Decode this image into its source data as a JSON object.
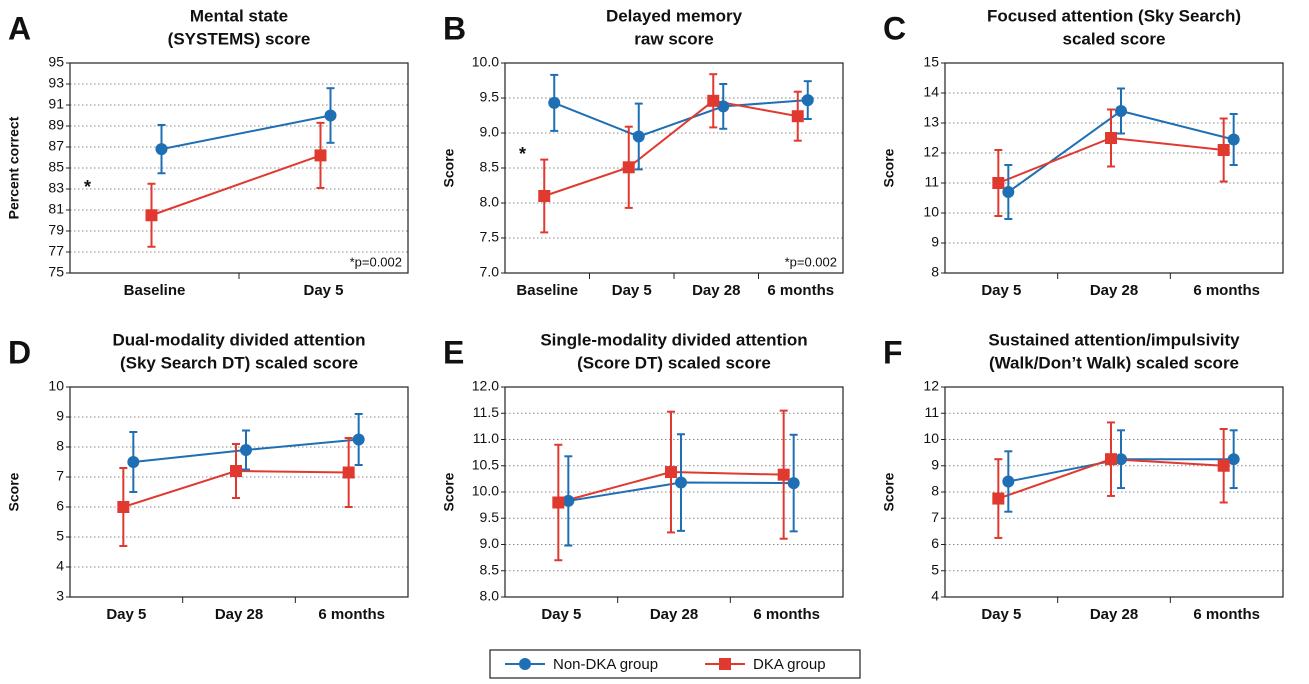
{
  "chart_data": [
    {
      "type": "line",
      "label": "A",
      "title": [
        "Mental state",
        "(SYSTEMS) score"
      ],
      "y_label": "Percent correct",
      "categories": [
        "Baseline",
        "Day 5"
      ],
      "ylim": [
        75,
        95
      ],
      "yticks": [
        75,
        77,
        79,
        81,
        83,
        85,
        87,
        89,
        91,
        93,
        95
      ],
      "grid": true,
      "annotations": [
        "*",
        "*p=0.002"
      ],
      "series": [
        {
          "name": "Non-DKA group",
          "color": "#1f6fb4",
          "marker": "circle",
          "values": [
            86.8,
            90.0
          ],
          "errors": [
            2.3,
            2.6
          ]
        },
        {
          "name": "DKA group",
          "color": "#e03a30",
          "marker": "square",
          "values": [
            80.5,
            86.2
          ],
          "errors": [
            3.0,
            3.1
          ]
        }
      ]
    },
    {
      "type": "line",
      "label": "B",
      "title": [
        "Delayed memory",
        "raw score"
      ],
      "y_label": "Score",
      "categories": [
        "Baseline",
        "Day 5",
        "Day 28",
        "6 months"
      ],
      "ylim": [
        7.0,
        10.0
      ],
      "yticks": [
        {
          "value": 7,
          "label": "7.0"
        },
        7.5,
        {
          "value": 8,
          "label": "8.0"
        },
        8.5,
        {
          "value": 9,
          "label": "9.0"
        },
        9.5,
        {
          "value": 10,
          "label": "10.0"
        }
      ],
      "grid": true,
      "annotations": [
        "*",
        "*p=0.002"
      ],
      "series": [
        {
          "name": "Non-DKA group",
          "color": "#1f6fb4",
          "marker": "circle",
          "values": [
            9.43,
            8.95,
            9.38,
            9.47
          ],
          "errors": [
            0.4,
            0.47,
            0.32,
            0.27
          ]
        },
        {
          "name": "DKA group",
          "color": "#e03a30",
          "marker": "square",
          "values": [
            8.1,
            8.51,
            9.46,
            9.24
          ],
          "errors": [
            0.52,
            0.58,
            0.38,
            0.35
          ]
        }
      ]
    },
    {
      "type": "line",
      "label": "C",
      "title": [
        "Focused attention (Sky Search)",
        "scaled score"
      ],
      "y_label": "Score",
      "categories": [
        "Day 5",
        "Day 28",
        "6 months"
      ],
      "ylim": [
        8,
        15
      ],
      "yticks": [
        8,
        9,
        10,
        11,
        12,
        13,
        14,
        15
      ],
      "grid": true,
      "series": [
        {
          "name": "Non-DKA group",
          "color": "#1f6fb4",
          "marker": "circle",
          "values": [
            10.7,
            13.4,
            12.45
          ],
          "errors": [
            0.9,
            0.75,
            0.85
          ]
        },
        {
          "name": "DKA group",
          "color": "#e03a30",
          "marker": "square",
          "values": [
            11.0,
            12.5,
            12.1
          ],
          "errors": [
            1.1,
            0.95,
            1.05
          ]
        }
      ]
    },
    {
      "type": "line",
      "label": "D",
      "title": [
        "Dual-modality divided attention",
        "(Sky Search DT) scaled score"
      ],
      "y_label": "Score",
      "categories": [
        "Day 5",
        "Day 28",
        "6 months"
      ],
      "ylim": [
        3,
        10
      ],
      "yticks": [
        3,
        4,
        5,
        6,
        7,
        8,
        9,
        10
      ],
      "grid": true,
      "series": [
        {
          "name": "Non-DKA group",
          "color": "#1f6fb4",
          "marker": "circle",
          "values": [
            7.5,
            7.9,
            8.25
          ],
          "errors": [
            1.0,
            0.65,
            0.85
          ]
        },
        {
          "name": "DKA group",
          "color": "#e03a30",
          "marker": "square",
          "values": [
            6.0,
            7.2,
            7.15
          ],
          "errors": [
            1.3,
            0.9,
            1.15
          ]
        }
      ]
    },
    {
      "type": "line",
      "label": "E",
      "title": [
        "Single-modality divided attention",
        "(Score DT) scaled score"
      ],
      "y_label": "Score",
      "categories": [
        "Day 5",
        "Day 28",
        "6 months"
      ],
      "ylim": [
        8.0,
        12.0
      ],
      "yticks": [
        {
          "value": 8,
          "label": "8.0"
        },
        8.5,
        {
          "value": 9,
          "label": "9.0"
        },
        9.5,
        {
          "value": 10,
          "label": "10.0"
        },
        10.5,
        {
          "value": 11,
          "label": "11.0"
        },
        11.5,
        {
          "value": 12,
          "label": "12.0"
        }
      ],
      "grid": true,
      "series": [
        {
          "name": "Non-DKA group",
          "color": "#1f6fb4",
          "marker": "circle",
          "values": [
            9.83,
            10.18,
            10.17
          ],
          "errors": [
            0.85,
            0.92,
            0.92
          ]
        },
        {
          "name": "DKA group",
          "color": "#e03a30",
          "marker": "square",
          "values": [
            9.8,
            10.38,
            10.33
          ],
          "errors": [
            1.1,
            1.15,
            1.22
          ]
        }
      ]
    },
    {
      "type": "line",
      "label": "F",
      "title": [
        "Sustained attention/impulsivity",
        "(Walk/Don’t Walk) scaled score"
      ],
      "y_label": "Score",
      "categories": [
        "Day 5",
        "Day 28",
        "6 months"
      ],
      "ylim": [
        4,
        12
      ],
      "yticks": [
        4,
        5,
        6,
        7,
        8,
        9,
        10,
        11,
        12
      ],
      "grid": true,
      "series": [
        {
          "name": "Non-DKA group",
          "color": "#1f6fb4",
          "marker": "circle",
          "values": [
            8.4,
            9.25,
            9.25
          ],
          "errors": [
            1.15,
            1.1,
            1.1
          ]
        },
        {
          "name": "DKA group",
          "color": "#e03a30",
          "marker": "square",
          "values": [
            7.75,
            9.25,
            9.0
          ],
          "errors": [
            1.5,
            1.4,
            1.4
          ]
        }
      ]
    }
  ]
}
